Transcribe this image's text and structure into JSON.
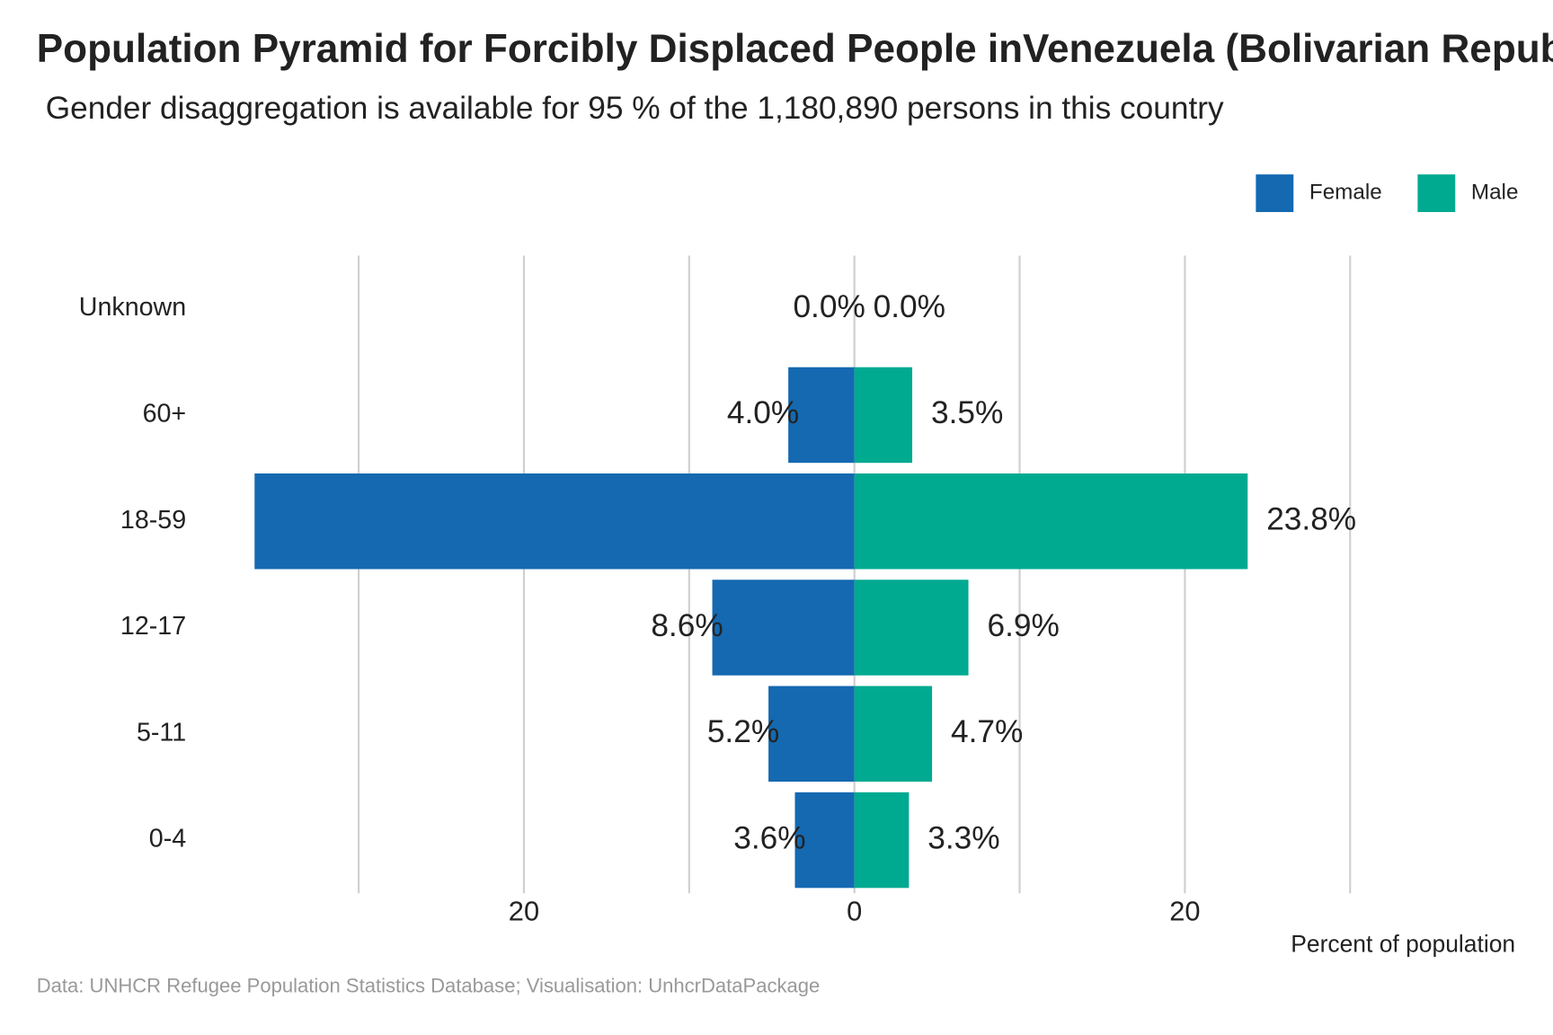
{
  "chart_data": {
    "type": "pyramid",
    "title": "Population Pyramid for Forcibly Displaced People inVenezuela (Bolivarian Republic of)",
    "subtitle": "Gender disaggregation is available for 95 % of the 1,180,890 persons in this country",
    "caption": "Data: UNHCR Refugee Population Statistics Database; Visualisation: UnhcrDataPackage",
    "x_label": "Percent of population",
    "categories": [
      "Unknown",
      "60+",
      "18-59",
      "12-17",
      "5-11",
      "0-4"
    ],
    "series": [
      {
        "name": "Female",
        "color": "#1469b1",
        "side": "left",
        "values": [
          0.0,
          4.0,
          36.3,
          8.6,
          5.2,
          3.6
        ],
        "value_labels": [
          "0.0%",
          "4.0%",
          null,
          "8.6%",
          "5.2%",
          "3.6%"
        ]
      },
      {
        "name": "Male",
        "color": "#00aa91",
        "side": "right",
        "values": [
          0.0,
          3.5,
          23.8,
          6.9,
          4.7,
          3.3
        ],
        "value_labels": [
          "0.0%",
          "3.5%",
          "23.8%",
          "6.9%",
          "4.7%",
          "3.3%"
        ]
      }
    ],
    "xlim": [
      -38.4,
      40
    ],
    "xticks": [
      {
        "value": -20,
        "label": "20"
      },
      0,
      20
    ],
    "xminor": [
      -30,
      -10,
      10,
      30
    ],
    "grid": true,
    "legend": "top-right"
  }
}
